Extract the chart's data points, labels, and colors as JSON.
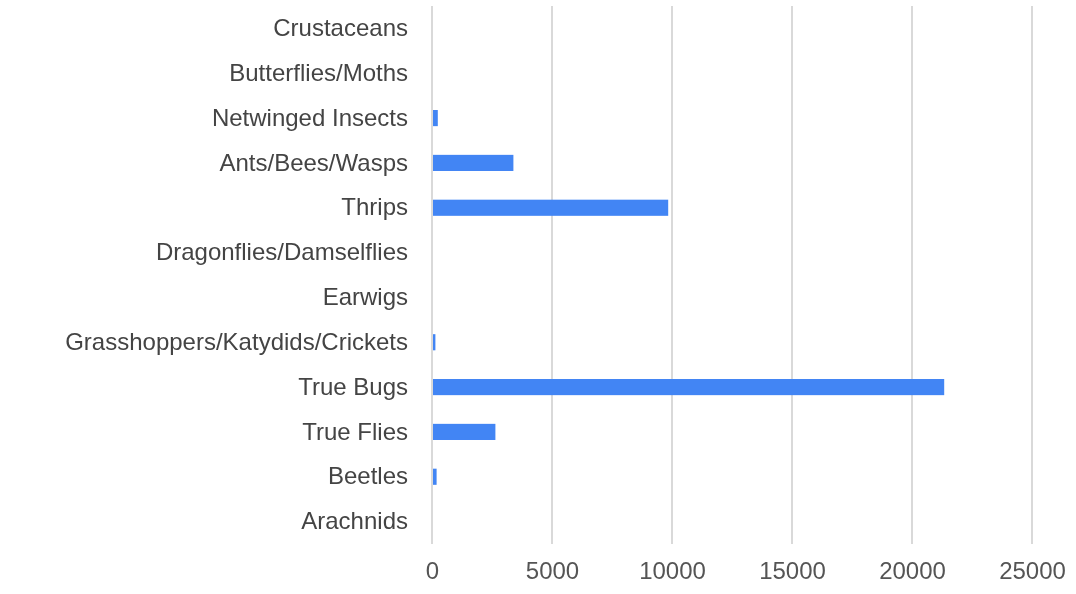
{
  "chart_data": {
    "type": "bar",
    "orientation": "horizontal",
    "categories": [
      "Crustaceans",
      "Butterflies/Moths",
      "Netwinged Insects",
      "Ants/Bees/Wasps",
      "Thrips",
      "Dragonflies/Damselflies",
      "Earwigs",
      "Grasshoppers/Katydids/Crickets",
      "True Bugs",
      "True Flies",
      "Beetles",
      "Arachnids"
    ],
    "values": [
      0,
      0,
      200,
      3350,
      9800,
      0,
      0,
      100,
      21300,
      2600,
      150,
      0
    ],
    "color": "#4285f4",
    "xlim": [
      0,
      25000
    ],
    "xticks": [
      0,
      5000,
      10000,
      15000,
      20000,
      25000
    ],
    "grid": "x"
  }
}
